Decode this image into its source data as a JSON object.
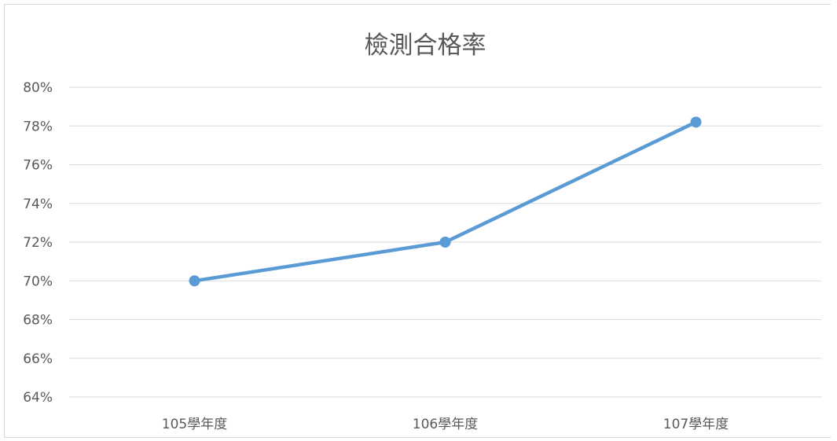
{
  "chart_data": {
    "type": "line",
    "title": "檢測合格率",
    "xlabel": "",
    "ylabel": "",
    "categories": [
      "105學年度",
      "106學年度",
      "107學年度"
    ],
    "series": [
      {
        "values": [
          70.0,
          72.0,
          78.2
        ],
        "color": "#5b9bd5"
      }
    ],
    "ylim": [
      64,
      80
    ],
    "ytick_step": 2,
    "ytick_format": "{v}%",
    "grid": true,
    "legend": "none"
  }
}
